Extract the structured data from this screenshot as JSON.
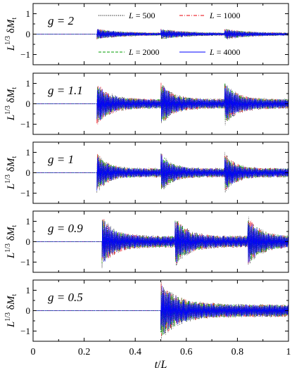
{
  "chart_data": [
    {
      "type": "line",
      "annotation": "g = 2",
      "ylabel": "L^1/3 δM_t",
      "ylim": [
        -1.5,
        1.5
      ],
      "yticks": [
        -1,
        0,
        1
      ],
      "xlim": [
        0,
        1
      ],
      "quench_times": [
        0.25,
        0.5,
        0.75
      ],
      "peak_amplitude": 0.25,
      "decay_rate": 3,
      "legend": {
        "placement": "top-right",
        "entries": [
          {
            "label": "L = 500",
            "color": "#000000",
            "dash": "dotted"
          },
          {
            "label": "L = 1000",
            "color": "#e8000b",
            "dash": "dash-dot"
          },
          {
            "label": "L = 2000",
            "color": "#009e00",
            "dash": "dashed"
          },
          {
            "label": "L = 4000",
            "color": "#0000ff",
            "dash": "solid"
          }
        ]
      }
    },
    {
      "type": "line",
      "annotation": "g = 1.1",
      "ylabel": "L^1/3 δM_t",
      "ylim": [
        -1.5,
        1.5
      ],
      "yticks": [
        -1,
        0,
        1
      ],
      "xlim": [
        0,
        1
      ],
      "quench_times": [
        0.25,
        0.5,
        0.75
      ],
      "peak_amplitude": 1.0,
      "decay_rate": 6
    },
    {
      "type": "line",
      "annotation": "g = 1",
      "ylabel": "L^1/3 δM_t",
      "ylim": [
        -1.5,
        1.5
      ],
      "yticks": [
        -1,
        0,
        1
      ],
      "xlim": [
        0,
        1
      ],
      "quench_times": [
        0.25,
        0.5,
        0.75
      ],
      "peak_amplitude": 0.95,
      "decay_rate": 7
    },
    {
      "type": "line",
      "annotation": "g = 0.9",
      "ylabel": "L^1/3 δM_t",
      "ylim": [
        -1.5,
        1.5
      ],
      "yticks": [
        -1,
        0,
        1
      ],
      "xlim": [
        0,
        1
      ],
      "quench_times": [
        0.27,
        0.555,
        0.84
      ],
      "peak_amplitude": 1.2,
      "decay_rate": 6
    },
    {
      "type": "line",
      "annotation": "g = 0.5",
      "ylabel": "L^1/3 δM_t",
      "ylim": [
        -1.5,
        1.5
      ],
      "yticks": [
        -1,
        0,
        1
      ],
      "xlim": [
        0,
        1
      ],
      "xticks": [
        0,
        0.2,
        0.4,
        0.6,
        0.8,
        1
      ],
      "xticklabels": [
        "0",
        "0.2",
        "0.4",
        "0.6",
        "0.8",
        "1"
      ],
      "xlabel": "t / L",
      "quench_times": [
        0.5
      ],
      "peak_amplitude": 1.3,
      "decay_rate": 4
    }
  ]
}
